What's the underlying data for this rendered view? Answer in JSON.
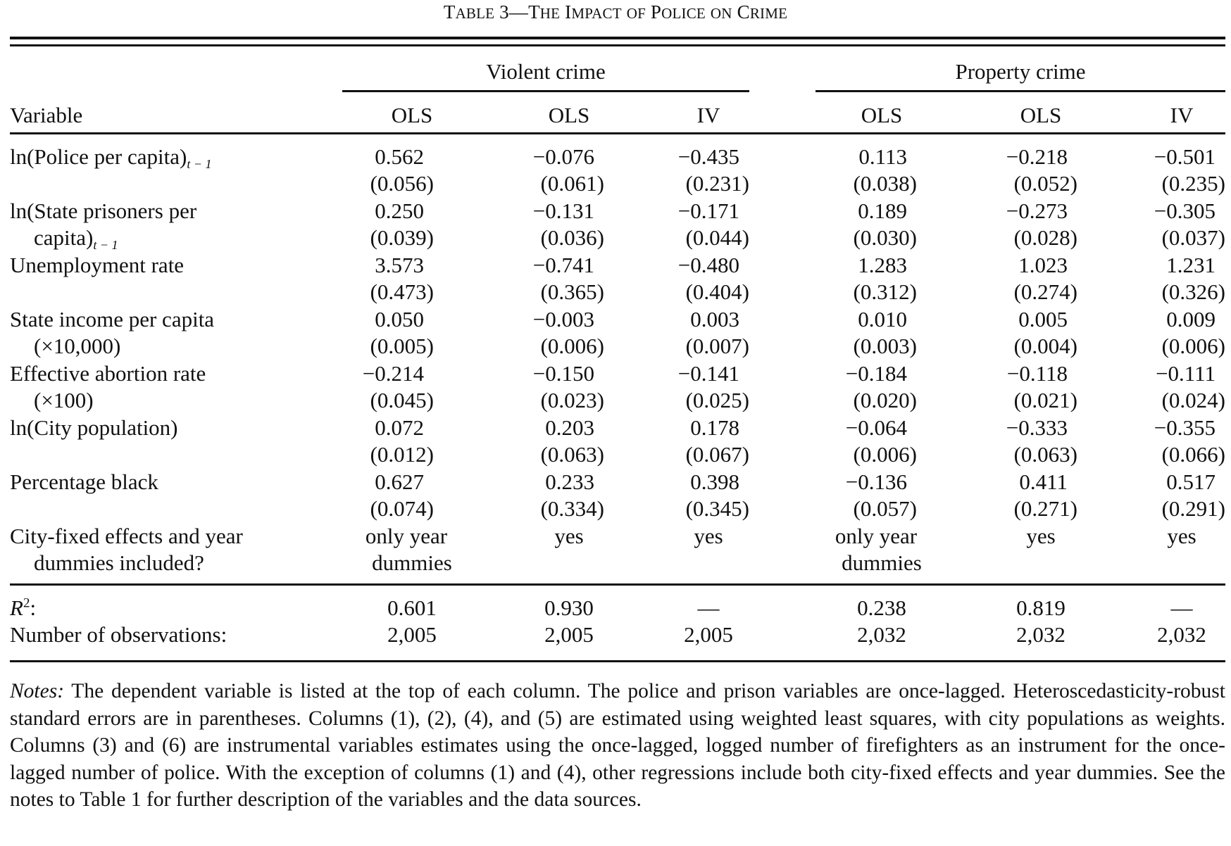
{
  "title": {
    "table_no": "T",
    "table_no_rest": "ABLE",
    "num": "3",
    "dash": "—",
    "t1": "T",
    "t1r": "HE",
    "t2": "I",
    "t2r": "MPACT",
    "t3": "OF",
    "t4": "P",
    "t4r": "OLICE",
    "t5": "ON",
    "t6": "C",
    "t6r": "RIME"
  },
  "groups": {
    "violent": "Violent crime",
    "property": "Property crime"
  },
  "header": {
    "variable": "Variable",
    "cols": [
      "OLS",
      "OLS",
      "IV",
      "OLS",
      "OLS",
      "IV"
    ]
  },
  "rows": [
    {
      "label1": "ln(Police per capita)",
      "label1_sub": "t − 1",
      "label2": "",
      "coef": [
        "0.562",
        "−0.076",
        "−0.435",
        "0.113",
        "−0.218",
        "−0.501"
      ],
      "se": [
        "(0.056)",
        "(0.061)",
        "(0.231)",
        "(0.038)",
        "(0.052)",
        "(0.235)"
      ]
    },
    {
      "label1": "ln(State prisoners per",
      "label2": "capita)",
      "label2_sub": "t − 1",
      "coef": [
        "0.250",
        "−0.131",
        "−0.171",
        "0.189",
        "−0.273",
        "−0.305"
      ],
      "se": [
        "(0.039)",
        "(0.036)",
        "(0.044)",
        "(0.030)",
        "(0.028)",
        "(0.037)"
      ]
    },
    {
      "label1": "Unemployment rate",
      "label2": "",
      "coef": [
        "3.573",
        "−0.741",
        "−0.480",
        "1.283",
        "1.023",
        "1.231"
      ],
      "se": [
        "(0.473)",
        "(0.365)",
        "(0.404)",
        "(0.312)",
        "(0.274)",
        "(0.326)"
      ]
    },
    {
      "label1": "State income per capita",
      "label2": "(×10,000)",
      "coef": [
        "0.050",
        "−0.003",
        "0.003",
        "0.010",
        "0.005",
        "0.009"
      ],
      "se": [
        "(0.005)",
        "(0.006)",
        "(0.007)",
        "(0.003)",
        "(0.004)",
        "(0.006)"
      ]
    },
    {
      "label1": "Effective abortion rate",
      "label2": "(×100)",
      "coef": [
        "−0.214",
        "−0.150",
        "−0.141",
        "−0.184",
        "−0.118",
        "−0.111"
      ],
      "se": [
        "(0.045)",
        "(0.023)",
        "(0.025)",
        "(0.020)",
        "(0.021)",
        "(0.024)"
      ]
    },
    {
      "label1": "ln(City population)",
      "label2": "",
      "coef": [
        "0.072",
        "0.203",
        "0.178",
        "−0.064",
        "−0.333",
        "−0.355"
      ],
      "se": [
        "(0.012)",
        "(0.063)",
        "(0.067)",
        "(0.006)",
        "(0.063)",
        "(0.066)"
      ]
    },
    {
      "label1": "Percentage black",
      "label2": "",
      "coef": [
        "0.627",
        "0.233",
        "0.398",
        "−0.136",
        "0.411",
        "0.517"
      ],
      "se": [
        "(0.074)",
        "(0.334)",
        "(0.345)",
        "(0.057)",
        "(0.271)",
        "(0.291)"
      ]
    }
  ],
  "fixed_effects": {
    "label1": "City-fixed effects and year",
    "label2": "dummies included?",
    "line1": [
      "only year",
      "yes",
      "yes",
      "only year",
      "yes",
      "yes"
    ],
    "line2": [
      "dummies",
      "",
      "",
      "dummies",
      "",
      ""
    ]
  },
  "stats": {
    "r2_label": "R",
    "r2_sup": "2",
    "r2_colon": ":",
    "r2": [
      "0.601",
      "0.930",
      "—",
      "0.238",
      "0.819",
      "—"
    ],
    "n_label": "Number of observations:",
    "n": [
      "2,005",
      "2,005",
      "2,005",
      "2,032",
      "2,032",
      "2,032"
    ]
  },
  "notes": {
    "lead": "Notes:",
    "text": "The dependent variable is listed at the top of each column. The police and prison variables are once-lagged. Heteroscedasticity-robust standard errors are in parentheses. Columns (1), (2), (4), and (5) are estimated using weighted least squares, with city populations as weights. Columns (3) and (6) are instrumental variables estimates using the once-lagged, logged number of firefighters as an instrument for the once-lagged number of police. With the exception of columns (1) and (4), other regressions include both city-fixed effects and year dummies. See the notes to Table 1 for further description of the variables and the data sources."
  }
}
